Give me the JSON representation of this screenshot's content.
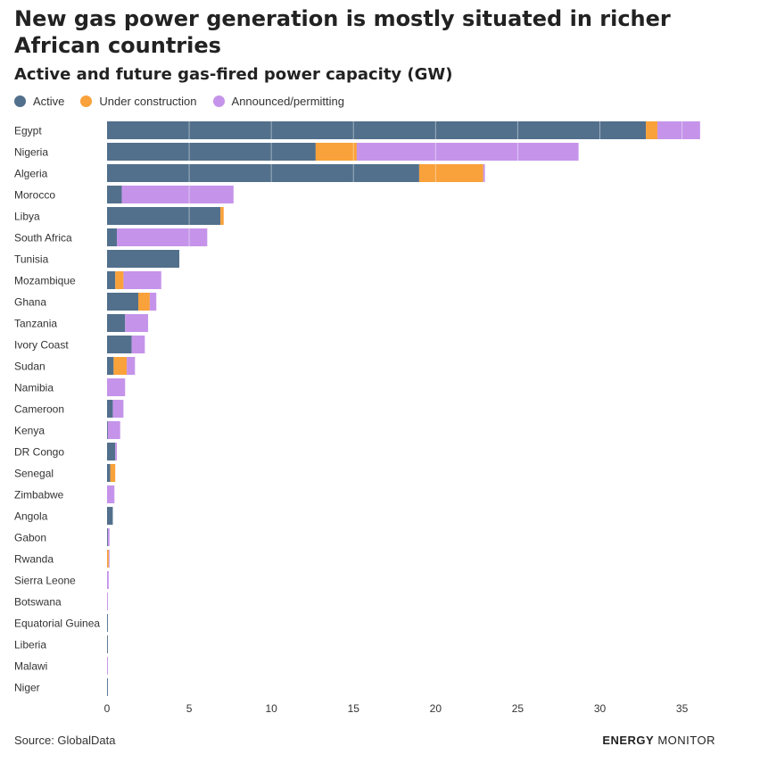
{
  "chart_data": {
    "type": "bar",
    "orientation": "horizontal",
    "stacked": true,
    "title": "New gas power generation is mostly situated in richer African countries",
    "subtitle": "Active and future gas-fired power capacity (GW)",
    "categories": [
      "Egypt",
      "Nigeria",
      "Algeria",
      "Morocco",
      "Libya",
      "South Africa",
      "Tunisia",
      "Mozambique",
      "Ghana",
      "Tanzania",
      "Ivory Coast",
      "Sudan",
      "Namibia",
      "Cameroon",
      "Kenya",
      "DR Congo",
      "Senegal",
      "Zimbabwe",
      "Angola",
      "Gabon",
      "Rwanda",
      "Sierra Leone",
      "Botswana",
      "Equatorial Guinea",
      "Liberia",
      "Malawi",
      "Niger"
    ],
    "series": [
      {
        "name": "Active",
        "color": "#52708c",
        "values": [
          32.8,
          12.7,
          19.0,
          0.9,
          6.9,
          0.6,
          4.4,
          0.5,
          1.9,
          1.1,
          1.5,
          0.4,
          0.0,
          0.35,
          0.05,
          0.5,
          0.2,
          0.0,
          0.35,
          0.05,
          0.0,
          0.0,
          0.0,
          0.05,
          0.05,
          0.0,
          0.05
        ]
      },
      {
        "name": "Under construction",
        "color": "#f9a13a",
        "values": [
          0.7,
          2.5,
          3.9,
          0.0,
          0.2,
          0.0,
          0.0,
          0.5,
          0.7,
          0.0,
          0.0,
          0.8,
          0.0,
          0.0,
          0.0,
          0.0,
          0.3,
          0.0,
          0.0,
          0.0,
          0.1,
          0.0,
          0.0,
          0.0,
          0.0,
          0.0,
          0.0
        ]
      },
      {
        "name": "Announced/permitting",
        "color": "#c594ea",
        "values": [
          2.6,
          13.5,
          0.1,
          6.8,
          0.0,
          5.5,
          0.0,
          2.3,
          0.4,
          1.4,
          0.8,
          0.5,
          1.1,
          0.65,
          0.75,
          0.1,
          0.0,
          0.45,
          0.0,
          0.1,
          0.05,
          0.1,
          0.05,
          0.0,
          0.0,
          0.05,
          0.0
        ]
      }
    ],
    "xlim": [
      0,
      36
    ],
    "xticks": [
      0,
      5,
      10,
      15,
      20,
      25,
      30,
      35
    ],
    "grid": true,
    "legend_position": "top-left"
  },
  "footer": {
    "source": "Source: GlobalData",
    "brand_a": "ENERGY",
    "brand_b": "MONITOR"
  }
}
